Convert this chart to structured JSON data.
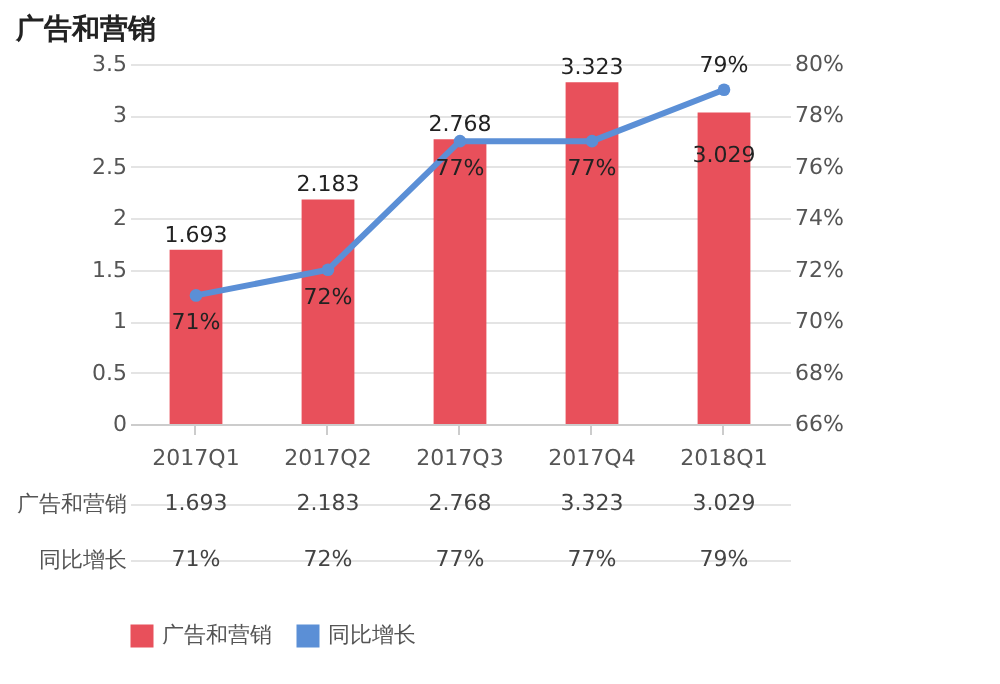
{
  "chart_data": {
    "type": "bar",
    "title": "广告和营销",
    "categories": [
      "2017Q1",
      "2017Q2",
      "2017Q3",
      "2017Q4",
      "2018Q1"
    ],
    "series": [
      {
        "name": "广告和营销",
        "color": "#e8505b",
        "values": [
          1.693,
          2.183,
          2.768,
          3.323,
          3.029
        ],
        "value_labels": [
          "1.693",
          "2.183",
          "2.768",
          "3.323",
          "3.029"
        ]
      },
      {
        "name": "同比增长",
        "type": "line",
        "axis": "y2",
        "color": "#5b8fd6",
        "values": [
          71,
          72,
          77,
          77,
          79
        ],
        "value_labels": [
          "71%",
          "72%",
          "77%",
          "77%",
          "79%"
        ]
      }
    ],
    "ylim": [
      0,
      3.5
    ],
    "yticks": [
      0,
      0.5,
      1,
      1.5,
      2,
      2.5,
      3,
      3.5
    ],
    "y2lim": [
      66,
      80
    ],
    "y2ticks": [
      {
        "value": 66,
        "label": "66%"
      },
      {
        "value": 68,
        "label": "68%"
      },
      {
        "value": 70,
        "label": "70%"
      },
      {
        "value": 72,
        "label": "72%"
      },
      {
        "value": 74,
        "label": "74%"
      },
      {
        "value": 76,
        "label": "76%"
      },
      {
        "value": 78,
        "label": "78%"
      },
      {
        "value": 80,
        "label": "80%"
      }
    ],
    "grid": "y",
    "legend": "bottom",
    "marker": "circle"
  }
}
